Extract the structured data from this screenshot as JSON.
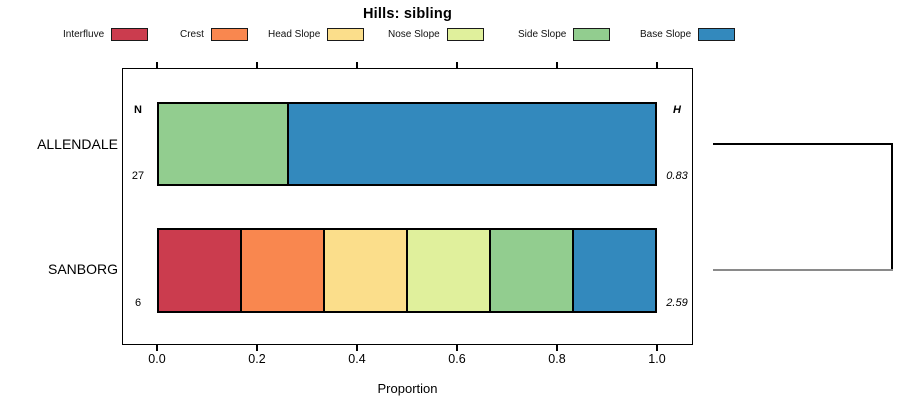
{
  "chart_data": {
    "type": "bar",
    "variant": "horizontal-stacked-proportion",
    "title": "Hills: sibling",
    "xlabel": "Proportion",
    "xlim": [
      0,
      1
    ],
    "xticks": [
      0,
      0.2,
      0.4,
      0.6,
      0.8,
      1
    ],
    "xtick_labels": [
      "0.0",
      "0.2",
      "0.4",
      "0.6",
      "0.8",
      "1.0"
    ],
    "grid": false,
    "legend_position": "top",
    "classes": [
      "Interfluve",
      "Crest",
      "Head Slope",
      "Nose Slope",
      "Side Slope",
      "Base Slope"
    ],
    "colors": [
      "#CB3C4E",
      "#F9874F",
      "#FBDE8B",
      "#E0F09C",
      "#92CD8F",
      "#3389BD"
    ],
    "categories": [
      "ALLENDALE",
      "SANBORG"
    ],
    "series": [
      {
        "name": "Interfluve",
        "values": [
          0,
          0.167
        ]
      },
      {
        "name": "Crest",
        "values": [
          0,
          0.167
        ]
      },
      {
        "name": "Head Slope",
        "values": [
          0,
          0.167
        ]
      },
      {
        "name": "Nose Slope",
        "values": [
          0,
          0.167
        ]
      },
      {
        "name": "Side Slope",
        "values": [
          0.26,
          0.167
        ]
      },
      {
        "name": "Base Slope",
        "values": [
          0.74,
          0.167
        ]
      }
    ],
    "row_annotations": {
      "n_header": "N",
      "h_header": "H",
      "n_values": [
        "27",
        "6"
      ],
      "h_values": [
        "0.83",
        "2.59"
      ]
    },
    "right_dendrogram": true
  }
}
